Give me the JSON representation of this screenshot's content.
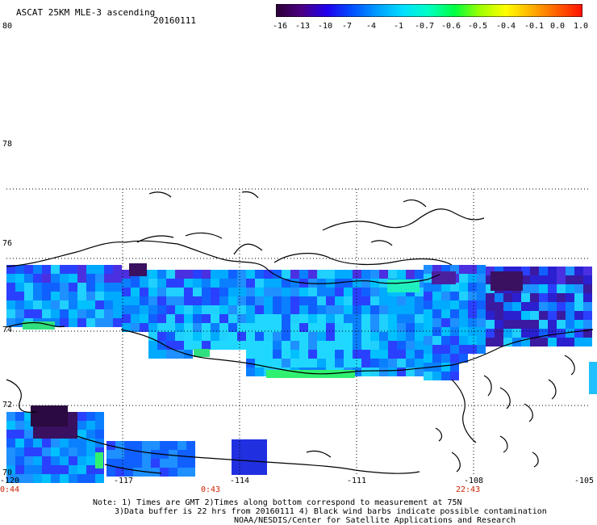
{
  "header": {
    "title": "ASCAT 25KM MLE-3 ascending",
    "date": "20160111"
  },
  "colorbar": {
    "labels": [
      "-16",
      "-13",
      "-10",
      "-7",
      "-4",
      "-1",
      "-0.7",
      "-0.6",
      "-0.5",
      "-0.4",
      "-0.1",
      "0.0",
      "1.0"
    ],
    "colors": [
      "#2a0033",
      "#4b0082",
      "#2000ee",
      "#0050ff",
      "#00a0ff",
      "#00e0ff",
      "#00ffc0",
      "#00ff40",
      "#a0ff00",
      "#ffff00",
      "#ffb000",
      "#ff6000",
      "#ff1000"
    ]
  },
  "axes": {
    "lat_labels": [
      "80",
      "78",
      "76",
      "74",
      "72",
      "70"
    ],
    "lon_labels": [
      "-120",
      "-117",
      "-114",
      "-111",
      "-108",
      "-105"
    ],
    "time_labels": [
      "0:44",
      "0:43",
      "22:43"
    ]
  },
  "notes": {
    "line1": "Note: 1) Times are GMT 2)Times along bottom correspond to measurement at 75N",
    "line2": "3)Data buffer is 22 hrs from 20160111 4) Black wind barbs indicate possible contamination",
    "line3": "NOAA/NESDIS/Center for Satellite Applications and Research"
  }
}
